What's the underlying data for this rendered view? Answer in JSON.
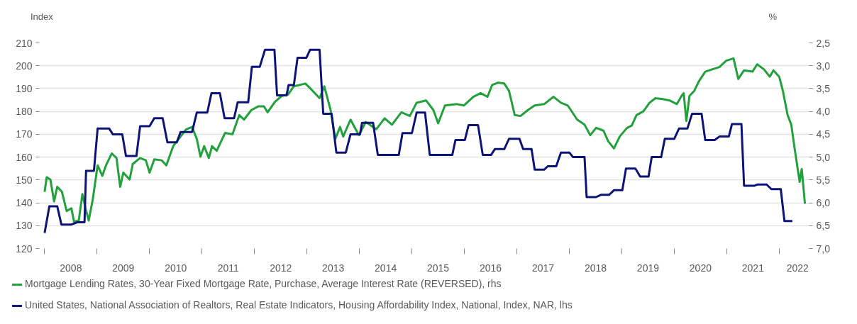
{
  "chart_data": {
    "type": "line",
    "ylabel": "Index",
    "y2label": "%",
    "xlim": [
      2007.9,
      2022.57
    ],
    "ylim": [
      120,
      210
    ],
    "y2lim": [
      7.0,
      2.5
    ],
    "xticks": [
      {
        "value": 2008,
        "label": null
      },
      {
        "value": 2008.5,
        "label": "2008"
      },
      {
        "value": 2009,
        "label": null
      },
      {
        "value": 2009.5,
        "label": "2009"
      },
      {
        "value": 2010,
        "label": null
      },
      {
        "value": 2010.5,
        "label": "2010"
      },
      {
        "value": 2011,
        "label": null
      },
      {
        "value": 2011.5,
        "label": "2011"
      },
      {
        "value": 2012,
        "label": null
      },
      {
        "value": 2012.5,
        "label": "2012"
      },
      {
        "value": 2013,
        "label": null
      },
      {
        "value": 2013.5,
        "label": "2013"
      },
      {
        "value": 2014,
        "label": null
      },
      {
        "value": 2014.5,
        "label": "2014"
      },
      {
        "value": 2015,
        "label": null
      },
      {
        "value": 2015.5,
        "label": "2015"
      },
      {
        "value": 2016,
        "label": null
      },
      {
        "value": 2016.5,
        "label": "2016"
      },
      {
        "value": 2017,
        "label": null
      },
      {
        "value": 2017.5,
        "label": "2017"
      },
      {
        "value": 2018,
        "label": null
      },
      {
        "value": 2018.5,
        "label": "2018"
      },
      {
        "value": 2019,
        "label": null
      },
      {
        "value": 2019.5,
        "label": "2019"
      },
      {
        "value": 2020,
        "label": null
      },
      {
        "value": 2020.5,
        "label": "2020"
      },
      {
        "value": 2021,
        "label": null
      },
      {
        "value": 2021.5,
        "label": "2021"
      },
      {
        "value": 2022,
        "label": null
      },
      {
        "value": 2022.35,
        "label": "2022"
      }
    ],
    "yticks": [
      120,
      130,
      140,
      150,
      160,
      170,
      180,
      190,
      200,
      210
    ],
    "y2ticks": [
      {
        "value": 2.5,
        "label": "2,5"
      },
      {
        "value": 3.0,
        "label": "3,0"
      },
      {
        "value": 3.5,
        "label": "3,5"
      },
      {
        "value": 4.0,
        "label": "4,0"
      },
      {
        "value": 4.5,
        "label": "4,5"
      },
      {
        "value": 5.0,
        "label": "5,0"
      },
      {
        "value": 5.5,
        "label": "5,5"
      },
      {
        "value": 6.0,
        "label": "6,0"
      },
      {
        "value": 6.5,
        "label": "6,5"
      },
      {
        "value": 7.0,
        "label": "7,0"
      }
    ],
    "grid": "y",
    "legend": "bottom",
    "marker": "none",
    "line_style": "solid",
    "series": [
      {
        "name": "Mortgage Lending Rates, 30-Year Fixed Mortgage Rate, Purchase, Average Interest Rate (REVERSED), rhs",
        "color": "#22a03c",
        "axis": "y2",
        "x": [
          2008.0,
          2008.04,
          2008.11,
          2008.18,
          2008.24,
          2008.33,
          2008.42,
          2008.51,
          2008.56,
          2008.65,
          2008.72,
          2008.78,
          2008.84,
          2008.92,
          2009.01,
          2009.1,
          2009.17,
          2009.28,
          2009.37,
          2009.44,
          2009.5,
          2009.62,
          2009.68,
          2009.82,
          2009.93,
          2010.0,
          2010.09,
          2010.23,
          2010.32,
          2010.45,
          2010.59,
          2010.7,
          2010.81,
          2010.9,
          2010.97,
          2011.04,
          2011.13,
          2011.19,
          2011.28,
          2011.44,
          2011.58,
          2011.71,
          2011.8,
          2011.94,
          2012.07,
          2012.18,
          2012.25,
          2012.39,
          2012.52,
          2012.64,
          2012.75,
          2012.97,
          2013.11,
          2013.24,
          2013.33,
          2013.45,
          2013.54,
          2013.63,
          2013.69,
          2013.83,
          2013.99,
          2014.12,
          2014.32,
          2014.48,
          2014.62,
          2014.8,
          2014.96,
          2015.09,
          2015.27,
          2015.41,
          2015.5,
          2015.63,
          2015.86,
          2015.99,
          2016.17,
          2016.31,
          2016.44,
          2016.53,
          2016.64,
          2016.76,
          2016.85,
          2016.96,
          2017.07,
          2017.21,
          2017.34,
          2017.52,
          2017.7,
          2017.84,
          2017.97,
          2018.15,
          2018.29,
          2018.4,
          2018.51,
          2018.65,
          2018.74,
          2018.85,
          2018.96,
          2019.1,
          2019.19,
          2019.28,
          2019.41,
          2019.53,
          2019.64,
          2019.78,
          2019.91,
          2020.05,
          2020.14,
          2020.18,
          2020.23,
          2020.29,
          2020.38,
          2020.47,
          2020.59,
          2020.72,
          2020.86,
          2020.99,
          2021.13,
          2021.22,
          2021.33,
          2021.49,
          2021.58,
          2021.71,
          2021.82,
          2021.89,
          2022.0,
          2022.07,
          2022.16,
          2022.23,
          2022.3,
          2022.39,
          2022.43,
          2022.49
        ],
        "values": [
          5.76,
          5.44,
          5.49,
          5.97,
          5.65,
          5.76,
          6.18,
          6.12,
          6.41,
          6.39,
          5.81,
          6.12,
          6.39,
          5.91,
          5.18,
          5.41,
          5.18,
          4.92,
          5.02,
          5.65,
          5.34,
          5.49,
          5.15,
          5.02,
          5.07,
          5.34,
          5.05,
          5.07,
          5.18,
          4.76,
          4.55,
          4.39,
          4.34,
          4.6,
          4.99,
          4.76,
          5.02,
          4.76,
          4.86,
          4.47,
          4.5,
          4.08,
          4.18,
          3.97,
          3.89,
          3.89,
          4.02,
          3.79,
          3.66,
          3.63,
          3.45,
          3.39,
          3.55,
          3.71,
          3.45,
          3.97,
          4.6,
          4.34,
          4.55,
          4.18,
          4.52,
          4.23,
          4.39,
          4.15,
          4.29,
          4.02,
          4.1,
          3.81,
          3.76,
          3.97,
          4.26,
          3.87,
          3.84,
          3.87,
          3.68,
          3.6,
          3.68,
          3.42,
          3.37,
          3.39,
          3.55,
          4.08,
          4.1,
          3.97,
          3.87,
          3.84,
          3.68,
          3.81,
          3.87,
          4.18,
          4.29,
          4.52,
          4.36,
          4.42,
          4.65,
          4.81,
          4.55,
          4.36,
          4.31,
          4.08,
          4.0,
          3.81,
          3.71,
          3.73,
          3.76,
          3.84,
          3.66,
          3.6,
          4.21,
          3.66,
          3.55,
          3.34,
          3.13,
          3.08,
          3.03,
          2.89,
          2.84,
          3.29,
          3.1,
          3.13,
          2.97,
          3.08,
          3.24,
          3.1,
          3.24,
          3.55,
          4.08,
          4.29,
          4.86,
          5.54,
          5.26,
          6.02
        ]
      },
      {
        "name": "United States, National Association of Realtors, Real Estate Indicators, Housing Affordability Index, National, Index, NAR, lhs",
        "color": "#0d1478",
        "axis": "y",
        "x": [
          2008.0,
          2008.09,
          2008.24,
          2008.32,
          2008.51,
          2008.63,
          2008.76,
          2008.79,
          2008.94,
          2009.01,
          2009.23,
          2009.3,
          2009.48,
          2009.55,
          2009.75,
          2009.82,
          2010.0,
          2010.09,
          2010.25,
          2010.34,
          2010.52,
          2010.59,
          2010.81,
          2010.9,
          2011.1,
          2011.18,
          2011.34,
          2011.43,
          2011.61,
          2011.68,
          2011.88,
          2011.95,
          2012.1,
          2012.2,
          2012.38,
          2012.43,
          2012.61,
          2012.65,
          2012.75,
          2012.82,
          2012.99,
          2013.06,
          2013.24,
          2013.31,
          2013.47,
          2013.56,
          2013.74,
          2013.83,
          2014.01,
          2014.05,
          2014.26,
          2014.35,
          2014.75,
          2014.82,
          2015.0,
          2015.09,
          2015.25,
          2015.34,
          2015.77,
          2015.83,
          2016.01,
          2016.08,
          2016.26,
          2016.35,
          2016.51,
          2016.58,
          2016.76,
          2016.85,
          2017.05,
          2017.12,
          2017.28,
          2017.34,
          2017.52,
          2017.59,
          2017.75,
          2017.84,
          2018.0,
          2018.07,
          2018.29,
          2018.33,
          2018.51,
          2018.6,
          2018.76,
          2018.85,
          2019.01,
          2019.08,
          2019.26,
          2019.35,
          2019.51,
          2019.57,
          2019.75,
          2019.82,
          2020.0,
          2020.09,
          2020.25,
          2020.34,
          2020.52,
          2020.59,
          2020.77,
          2020.86,
          2021.04,
          2021.1,
          2021.28,
          2021.33,
          2021.53,
          2021.58,
          2021.76,
          2021.85,
          2022.03,
          2022.1,
          2022.25
        ],
        "values": [
          126.8,
          138.5,
          138.5,
          130.5,
          130.5,
          131.5,
          131.5,
          154,
          154,
          172.5,
          172.5,
          170,
          170,
          160.5,
          160.5,
          173.5,
          173.5,
          177,
          177,
          166.5,
          166.5,
          171,
          171,
          179.5,
          179.5,
          188,
          188,
          177,
          177,
          184,
          184,
          199.5,
          199.5,
          207,
          207,
          187,
          187,
          191.5,
          191.5,
          203.5,
          203.5,
          207,
          207,
          179,
          179,
          162,
          162,
          170,
          170,
          175,
          175,
          161,
          161,
          170.5,
          170.5,
          179.5,
          179.5,
          161,
          161,
          167.5,
          167.5,
          174,
          174,
          161,
          161,
          163.5,
          163.5,
          168,
          168,
          163.5,
          163.5,
          154.5,
          154.5,
          156,
          156,
          162,
          162,
          160,
          160,
          142.5,
          142.5,
          143.5,
          143.5,
          145.5,
          145.5,
          155,
          155,
          151.5,
          151.5,
          160,
          160,
          168,
          168,
          172.5,
          172.5,
          179,
          179,
          167.5,
          167.5,
          169,
          169,
          174.5,
          174.5,
          147.5,
          147.5,
          148,
          148,
          146,
          146,
          132,
          132
        ]
      }
    ]
  }
}
